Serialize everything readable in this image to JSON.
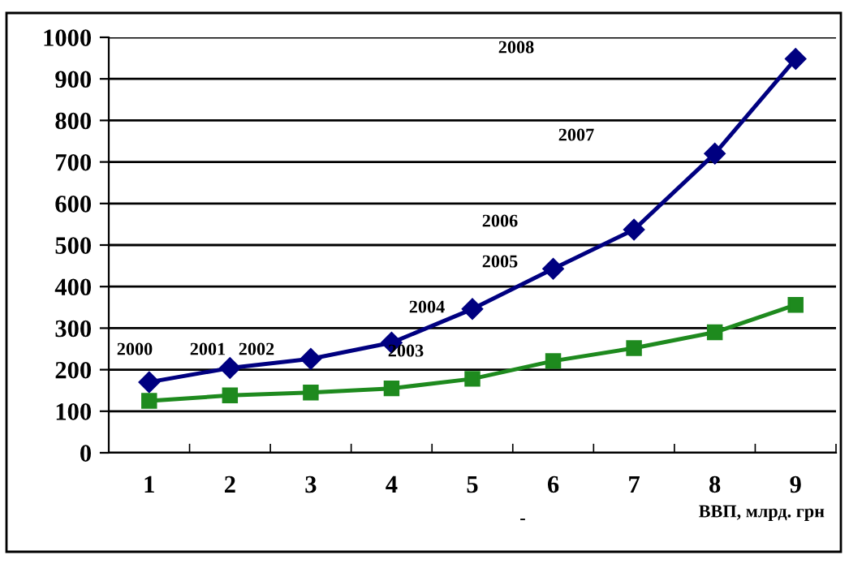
{
  "chart_data": {
    "type": "line",
    "xlabel": "ВВП, млрд. грн",
    "categories": [
      "1",
      "2",
      "3",
      "4",
      "5",
      "6",
      "7",
      "8",
      "9"
    ],
    "series": [
      {
        "color": "#000080",
        "marker": "diamond",
        "values": [
          170,
          204,
          226,
          265,
          346,
          443,
          537,
          720,
          948
        ]
      },
      {
        "color": "#1e8a1e",
        "marker": "square",
        "values": [
          125,
          138,
          145,
          155,
          178,
          221,
          252,
          290,
          356
        ]
      }
    ],
    "ylim": [
      0,
      1000
    ],
    "yticks": [
      0,
      100,
      200,
      300,
      400,
      500,
      600,
      700,
      800,
      900,
      1000
    ],
    "grid": "y",
    "annotations": [
      "2000",
      "2001",
      "2002",
      "2003",
      "2004",
      "2005",
      "2006",
      "2007",
      "2008",
      "-"
    ]
  }
}
